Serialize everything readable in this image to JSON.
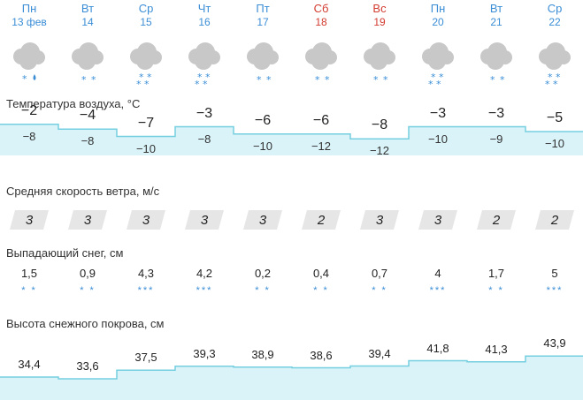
{
  "days": [
    {
      "name": "Пн",
      "date": "13 фев",
      "color": "blue",
      "precip": "rain",
      "precip_text": "* ʻ"
    },
    {
      "name": "Вт",
      "date": "14",
      "color": "blue",
      "precip": "snow2",
      "precip_text": "* *"
    },
    {
      "name": "Ср",
      "date": "15",
      "color": "blue",
      "precip": "snow4",
      "precip_text": "* *"
    },
    {
      "name": "Чт",
      "date": "16",
      "color": "blue",
      "precip": "snow4",
      "precip_text": "* *"
    },
    {
      "name": "Пт",
      "date": "17",
      "color": "blue",
      "precip": "snow2",
      "precip_text": "* *"
    },
    {
      "name": "Сб",
      "date": "18",
      "color": "red",
      "precip": "snow2",
      "precip_text": "* *"
    },
    {
      "name": "Вс",
      "date": "19",
      "color": "red",
      "precip": "snow2",
      "precip_text": "* *"
    },
    {
      "name": "Пн",
      "date": "20",
      "color": "blue",
      "precip": "snow4",
      "precip_text": "* *"
    },
    {
      "name": "Вт",
      "date": "21",
      "color": "blue",
      "precip": "snow2",
      "precip_text": "* *"
    },
    {
      "name": "Ср",
      "date": "22",
      "color": "blue",
      "precip": "snow4",
      "precip_text": "* *"
    }
  ],
  "temperature": {
    "title": "Температура воздуха, °C",
    "max": [
      "−2",
      "−4",
      "−7",
      "−3",
      "−6",
      "−6",
      "−8",
      "−3",
      "−3",
      "−5"
    ],
    "min": [
      "−8",
      "−8",
      "−10",
      "−8",
      "−10",
      "−12",
      "−12",
      "−10",
      "−9",
      "−10"
    ],
    "max_values": [
      -2,
      -4,
      -7,
      -3,
      -6,
      -6,
      -8,
      -3,
      -3,
      -5
    ]
  },
  "wind": {
    "title": "Средняя скорость ветра, м/с",
    "values": [
      "3",
      "3",
      "3",
      "3",
      "3",
      "2",
      "3",
      "3",
      "2",
      "2"
    ]
  },
  "snowfall": {
    "title": "Выпадающий снег, см",
    "values": [
      "1,5",
      "0,9",
      "4,3",
      "4,2",
      "0,2",
      "0,4",
      "0,7",
      "4",
      "1,7",
      "5"
    ],
    "flakes": [
      "* *",
      "* *",
      "***",
      "***",
      "* *",
      "* *",
      "* *",
      "***",
      "* *",
      "***"
    ]
  },
  "snow_cover": {
    "title": "Высота снежного покрова, см",
    "values": [
      "34,4",
      "33,6",
      "37,5",
      "39,3",
      "38,9",
      "38,6",
      "39,4",
      "41,8",
      "41,3",
      "43,9"
    ],
    "numbers": [
      34.4,
      33.6,
      37.5,
      39.3,
      38.9,
      38.6,
      39.4,
      41.8,
      41.3,
      43.9
    ]
  },
  "colors": {
    "accent_blue": "#3b8ed6",
    "weekend_red": "#d23b2f",
    "temp_fill": "#d9f3f8",
    "temp_line": "#76cfe0",
    "wind_bg": "#e6e6e6"
  }
}
